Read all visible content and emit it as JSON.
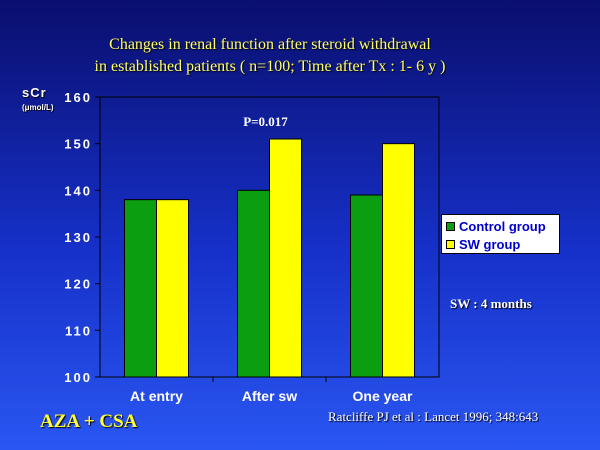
{
  "chart_data": {
    "type": "bar",
    "title_lines": [
      "Changes in renal function after steroid withdrawal",
      "in established patients ( n=100; Time after Tx : 1- 6 y )"
    ],
    "ylabel": "sCr",
    "yunit": "(μmol/L)",
    "ylim": [
      100,
      160
    ],
    "yticks": [
      100,
      110,
      120,
      130,
      140,
      150,
      160
    ],
    "categories": [
      "At entry",
      "After sw",
      "One year"
    ],
    "series": [
      {
        "name": "Control group",
        "color": "#0b9e10",
        "values": [
          138,
          140,
          139
        ]
      },
      {
        "name": "SW group",
        "color": "#ffff00",
        "values": [
          138,
          151,
          150
        ]
      }
    ],
    "annotation": {
      "text": "P=0.017",
      "category_index": 1
    },
    "legend_placement": "right",
    "grid": false
  },
  "note": "SW : 4 months",
  "footer_left": "AZA + CSA",
  "citation": "Ratcliffe PJ et al : Lancet 1996; 348:643"
}
